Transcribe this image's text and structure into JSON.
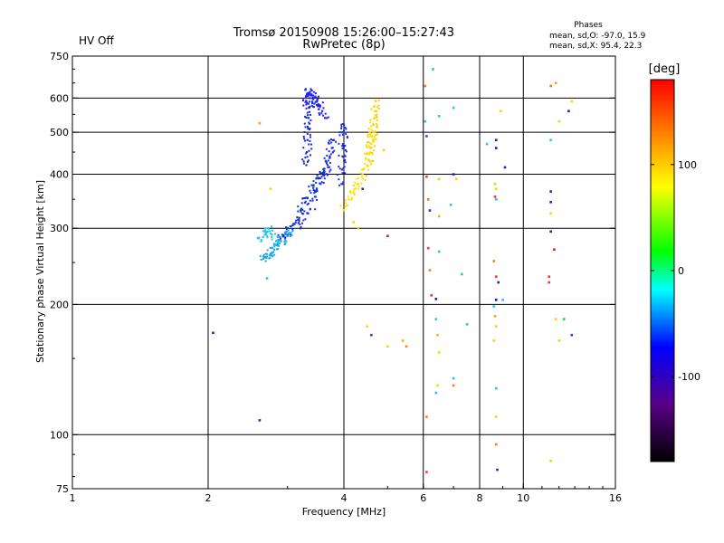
{
  "header": {
    "status": "HV Off",
    "status_color": "#cc0000",
    "title_line1": "Tromsø 20150908 15:26:00–15:27:43",
    "title_line2": "RwPretec (8p)",
    "phase_heading": "Phases",
    "phase_o": "mean, sd,O: -97.0, 15.9",
    "phase_x": "mean, sd,X:  95.4, 22.3"
  },
  "chart_data": {
    "type": "scatter",
    "title": "Tromsø 20150908 15:26:00–15:27:43",
    "subtitle": "RwPretec (8p)",
    "xlabel": "Frequency [MHz]",
    "ylabel": "Stationary phase Virtual Height [km]",
    "x_scale": "log",
    "y_scale": "log",
    "xlim": [
      1,
      16
    ],
    "ylim": [
      75,
      750
    ],
    "x_ticks": [
      {
        "value": 1,
        "label": "1"
      },
      {
        "value": 2,
        "label": "2"
      },
      {
        "value": 4,
        "label": "4"
      },
      {
        "value": 6,
        "label": "6"
      },
      {
        "value": 8,
        "label": "8"
      },
      {
        "value": 10,
        "label": "10"
      },
      {
        "value": 16,
        "label": "16"
      }
    ],
    "y_ticks": [
      {
        "value": 75,
        "label": "75"
      },
      {
        "value": 100,
        "label": "100"
      },
      {
        "value": 200,
        "label": "200"
      },
      {
        "value": 300,
        "label": "300"
      },
      {
        "value": 400,
        "label": "400"
      },
      {
        "value": 500,
        "label": "500"
      },
      {
        "value": 600,
        "label": "600"
      },
      {
        "value": 750,
        "label": "750"
      }
    ],
    "grid_x": [
      2,
      4,
      6,
      8,
      10
    ],
    "grid_y": [
      100,
      200,
      300,
      400,
      500,
      600
    ],
    "grid": true,
    "colorbar": {
      "label": "[deg]",
      "min": -180,
      "max": 180,
      "ticks": [
        {
          "value": 100,
          "label": "100"
        },
        {
          "value": 0,
          "label": "0"
        },
        {
          "value": -100,
          "label": "-100"
        }
      ],
      "stops": [
        "#000000",
        "#5a0088",
        "#0000ff",
        "#00ffff",
        "#00ff00",
        "#ffff00",
        "#ff8000",
        "#ff0000"
      ]
    },
    "traces": [
      {
        "name": "",
        "phase": -110,
        "color": "#1a2fe0",
        "x": [
          3.2,
          3.33,
          3.45,
          3.55,
          3.62,
          3.68,
          3.72,
          3.76,
          3.8
        ],
        "y": [
          300,
          325,
          355,
          380,
          400,
          420,
          440,
          460,
          480
        ]
      },
      {
        "name": "",
        "phase": -120,
        "color": "#1230d8",
        "x": [
          2.88,
          3.0,
          3.08,
          3.15,
          3.22,
          3.32,
          3.42,
          3.52,
          3.62
        ],
        "y": [
          282,
          290,
          305,
          318,
          333,
          352,
          372,
          392,
          412
        ]
      },
      {
        "name": "",
        "phase": -40,
        "color": "#1aa6e6",
        "x": [
          2.65,
          2.7,
          2.75,
          2.8,
          2.85,
          2.9,
          3.0,
          3.08
        ],
        "y": [
          255,
          258,
          262,
          268,
          274,
          280,
          288,
          296
        ]
      },
      {
        "name": "",
        "phase": -20,
        "color": "#22c4e8",
        "x": [
          2.62,
          2.67,
          2.72,
          2.77,
          2.82
        ],
        "y": [
          280,
          290,
          300,
          290,
          275
        ]
      },
      {
        "name": "",
        "phase": -105,
        "color": "#2020f0",
        "x": [
          3.3,
          3.33,
          3.36,
          3.39,
          3.42,
          3.46,
          3.52,
          3.58,
          3.63
        ],
        "y": [
          580,
          610,
          620,
          612,
          600,
          588,
          576,
          560,
          540
        ]
      },
      {
        "name": "",
        "phase": -110,
        "color": "#1525e8",
        "x": [
          3.3,
          3.31,
          3.32,
          3.33,
          3.34,
          3.35,
          3.36
        ],
        "y": [
          420,
          450,
          480,
          510,
          540,
          570,
          600
        ]
      },
      {
        "name": "",
        "phase": -100,
        "color": "#2030e0",
        "x": [
          3.95,
          3.96,
          3.97,
          3.98,
          3.99,
          4.0
        ],
        "y": [
          380,
          410,
          440,
          470,
          500,
          520
        ]
      },
      {
        "name": "",
        "phase": 100,
        "color": "#ffe000",
        "x": [
          4.0,
          4.1,
          4.2,
          4.3,
          4.4,
          4.5,
          4.55,
          4.6,
          4.65,
          4.68
        ],
        "y": [
          330,
          350,
          365,
          380,
          400,
          420,
          445,
          470,
          500,
          540
        ]
      },
      {
        "name": "",
        "phase": 110,
        "color": "#ffd000",
        "x": [
          4.55,
          4.58,
          4.62,
          4.65,
          4.68,
          4.7
        ],
        "y": [
          430,
          460,
          490,
          520,
          560,
          590
        ]
      }
    ],
    "scatter": [
      {
        "x": 2.05,
        "y": 172,
        "c": "#3020c0"
      },
      {
        "x": 2.6,
        "y": 108,
        "c": "#2030d0"
      },
      {
        "x": 2.6,
        "y": 525,
        "c": "#ffa000"
      },
      {
        "x": 4.4,
        "y": 370,
        "c": "#3a2a90"
      },
      {
        "x": 5.0,
        "y": 288,
        "c": "#cc2020"
      },
      {
        "x": 4.5,
        "y": 178,
        "c": "#ffd000"
      },
      {
        "x": 4.6,
        "y": 170,
        "c": "#2040e0"
      },
      {
        "x": 5.0,
        "y": 160,
        "c": "#ffd000"
      },
      {
        "x": 5.4,
        "y": 165,
        "c": "#ffb000"
      },
      {
        "x": 5.5,
        "y": 160,
        "c": "#ff8000"
      },
      {
        "x": 6.05,
        "y": 640,
        "c": "#ff7000"
      },
      {
        "x": 6.05,
        "y": 530,
        "c": "#22c4e8"
      },
      {
        "x": 6.1,
        "y": 490,
        "c": "#2050e0"
      },
      {
        "x": 6.1,
        "y": 395,
        "c": "#ff3030"
      },
      {
        "x": 6.15,
        "y": 350,
        "c": "#ff7000"
      },
      {
        "x": 6.2,
        "y": 330,
        "c": "#2030e0"
      },
      {
        "x": 6.15,
        "y": 270,
        "c": "#ff3030"
      },
      {
        "x": 6.2,
        "y": 240,
        "c": "#ff8000"
      },
      {
        "x": 6.25,
        "y": 210,
        "c": "#ff3030"
      },
      {
        "x": 6.4,
        "y": 206,
        "c": "#1a20c0"
      },
      {
        "x": 6.4,
        "y": 185,
        "c": "#22c4e8"
      },
      {
        "x": 6.45,
        "y": 170,
        "c": "#ffb000"
      },
      {
        "x": 6.5,
        "y": 155,
        "c": "#ffd000"
      },
      {
        "x": 6.45,
        "y": 130,
        "c": "#ffd000"
      },
      {
        "x": 6.4,
        "y": 125,
        "c": "#22c4e8"
      },
      {
        "x": 6.1,
        "y": 110,
        "c": "#ff8000"
      },
      {
        "x": 6.1,
        "y": 82,
        "c": "#ff3030"
      },
      {
        "x": 6.3,
        "y": 700,
        "c": "#22c4e8"
      },
      {
        "x": 6.5,
        "y": 545,
        "c": "#22c4e8"
      },
      {
        "x": 6.5,
        "y": 390,
        "c": "#ffd000"
      },
      {
        "x": 6.5,
        "y": 320,
        "c": "#ffb000"
      },
      {
        "x": 6.5,
        "y": 265,
        "c": "#22c4e8"
      },
      {
        "x": 7.0,
        "y": 570,
        "c": "#22c4e8"
      },
      {
        "x": 7.0,
        "y": 400,
        "c": "#1a20c0"
      },
      {
        "x": 7.1,
        "y": 390,
        "c": "#ffd000"
      },
      {
        "x": 6.9,
        "y": 340,
        "c": "#22c4e8"
      },
      {
        "x": 7.0,
        "y": 135,
        "c": "#22c4e8"
      },
      {
        "x": 7.0,
        "y": 130,
        "c": "#ff8000"
      },
      {
        "x": 7.3,
        "y": 235,
        "c": "#22c4e8"
      },
      {
        "x": 7.5,
        "y": 180,
        "c": "#22c4e8"
      },
      {
        "x": 8.3,
        "y": 470,
        "c": "#22c4e8"
      },
      {
        "x": 8.7,
        "y": 480,
        "c": "#1a20c0"
      },
      {
        "x": 8.7,
        "y": 460,
        "c": "#1a20c0"
      },
      {
        "x": 8.65,
        "y": 380,
        "c": "#ffd000"
      },
      {
        "x": 8.7,
        "y": 370,
        "c": "#ffd000"
      },
      {
        "x": 8.65,
        "y": 355,
        "c": "#ff3030"
      },
      {
        "x": 8.7,
        "y": 350,
        "c": "#22c4e8"
      },
      {
        "x": 8.6,
        "y": 252,
        "c": "#ff8000"
      },
      {
        "x": 8.7,
        "y": 232,
        "c": "#ff3030"
      },
      {
        "x": 8.8,
        "y": 225,
        "c": "#1a20c0"
      },
      {
        "x": 8.7,
        "y": 205,
        "c": "#1a20c0"
      },
      {
        "x": 8.6,
        "y": 198,
        "c": "#22c4e8"
      },
      {
        "x": 8.65,
        "y": 188,
        "c": "#ffa000"
      },
      {
        "x": 8.7,
        "y": 178,
        "c": "#ffd000"
      },
      {
        "x": 8.6,
        "y": 165,
        "c": "#ffd000"
      },
      {
        "x": 8.7,
        "y": 128,
        "c": "#22c4e8"
      },
      {
        "x": 8.7,
        "y": 110,
        "c": "#ffd000"
      },
      {
        "x": 8.7,
        "y": 95,
        "c": "#ff8000"
      },
      {
        "x": 8.75,
        "y": 83,
        "c": "#1a20c0"
      },
      {
        "x": 8.9,
        "y": 560,
        "c": "#ffd000"
      },
      {
        "x": 9.1,
        "y": 415,
        "c": "#1a20c0"
      },
      {
        "x": 9.0,
        "y": 205,
        "c": "#22c4e8"
      },
      {
        "x": 11.5,
        "y": 640,
        "c": "#ff7000"
      },
      {
        "x": 11.8,
        "y": 650,
        "c": "#ffa000"
      },
      {
        "x": 11.5,
        "y": 480,
        "c": "#22c4e8"
      },
      {
        "x": 11.5,
        "y": 365,
        "c": "#1a20c0"
      },
      {
        "x": 11.5,
        "y": 345,
        "c": "#1a20c0"
      },
      {
        "x": 11.5,
        "y": 325,
        "c": "#ffd000"
      },
      {
        "x": 11.5,
        "y": 295,
        "c": "#1a20c0"
      },
      {
        "x": 11.7,
        "y": 268,
        "c": "#cc2020"
      },
      {
        "x": 11.4,
        "y": 232,
        "c": "#ff3030"
      },
      {
        "x": 11.4,
        "y": 225,
        "c": "#ff3030"
      },
      {
        "x": 11.8,
        "y": 185,
        "c": "#ffd000"
      },
      {
        "x": 12.0,
        "y": 530,
        "c": "#ffd000"
      },
      {
        "x": 12.6,
        "y": 560,
        "c": "#1a20c0"
      },
      {
        "x": 12.8,
        "y": 590,
        "c": "#ffd000"
      },
      {
        "x": 12.3,
        "y": 185,
        "c": "#00e040"
      },
      {
        "x": 12.0,
        "y": 165,
        "c": "#ffd000"
      },
      {
        "x": 12.8,
        "y": 170,
        "c": "#2040e0"
      },
      {
        "x": 11.5,
        "y": 87,
        "c": "#ffd000"
      },
      {
        "x": 2.7,
        "y": 230,
        "c": "#22c4e8"
      },
      {
        "x": 2.75,
        "y": 370,
        "c": "#ffd000"
      },
      {
        "x": 4.2,
        "y": 310,
        "c": "#ffd000"
      },
      {
        "x": 4.3,
        "y": 300,
        "c": "#ffd000"
      },
      {
        "x": 4.9,
        "y": 455,
        "c": "#ffd000"
      }
    ]
  }
}
